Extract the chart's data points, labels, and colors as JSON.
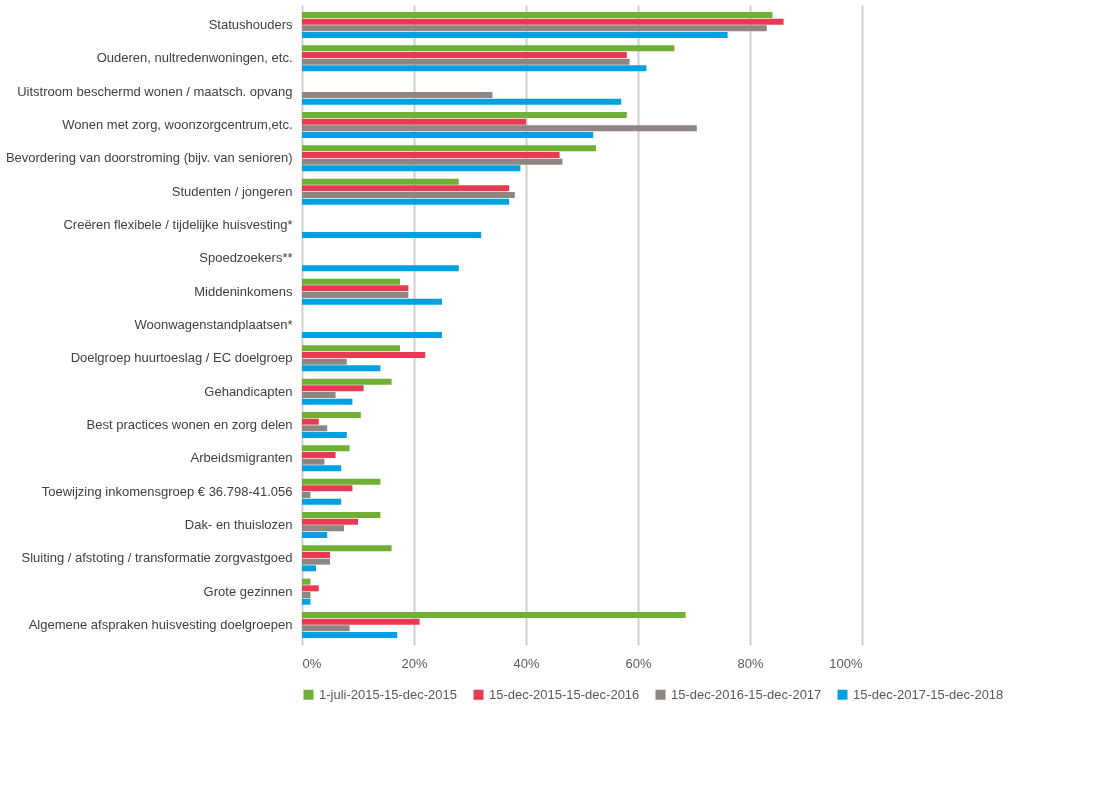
{
  "chart_data": {
    "type": "bar",
    "orientation": "horizontal",
    "categories": [
      "Statushouders",
      "Ouderen, nultredenwoningen, etc.",
      "Uitstroom beschermd wonen / maatsch. opvang",
      "Wonen met zorg, woonzorgcentrum,etc.",
      "Bevordering van doorstroming (bijv. van senioren)",
      "Studenten / jongeren",
      "Creëren flexibele / tijdelijke huisvesting*",
      "Spoedzoekers**",
      "Middeninkomens",
      "Woonwagenstandplaatsen*",
      "Doelgroep huurtoeslag / EC doelgroep",
      "Gehandicapten",
      "Best practices wonen en zorg delen",
      "Arbeidsmigranten",
      "Toewijzing inkomensgroep € 36.798-41.056",
      "Dak- en thuislozen",
      "Sluiting / afstoting / transformatie zorgvastgoed",
      "Grote gezinnen",
      "Algemene afspraken huisvesting doelgroepen"
    ],
    "series": [
      {
        "name": "1-juli-2015-15-dec-2015",
        "color": "#70b034",
        "values": [
          84,
          66.5,
          null,
          58,
          52.5,
          28,
          null,
          null,
          17.5,
          null,
          17.5,
          16,
          10.5,
          8.5,
          14,
          14,
          16,
          1.5,
          68.5
        ]
      },
      {
        "name": "15-dec-2015-15-dec-2016",
        "color": "#e83a52",
        "values": [
          86,
          58,
          null,
          40,
          46,
          37,
          null,
          null,
          19,
          null,
          22,
          11,
          3,
          6,
          9,
          10,
          5,
          3,
          21
        ]
      },
      {
        "name": "15-dec-2016-15-dec-2017",
        "color": "#8d8682",
        "values": [
          83,
          58.5,
          34,
          70.5,
          46.5,
          38,
          null,
          null,
          19,
          null,
          8,
          6,
          4.5,
          4,
          1.5,
          7.5,
          5,
          1.5,
          8.5
        ]
      },
      {
        "name": "15-dec-2017-15-dec-2018",
        "color": "#00a0e3",
        "values": [
          76,
          61.5,
          57,
          52,
          39,
          37,
          32,
          28,
          25,
          25,
          14,
          9,
          8,
          7,
          7,
          4.5,
          2.5,
          1.5,
          17
        ]
      }
    ],
    "xlim": [
      0,
      100
    ],
    "xticks": [
      {
        "value": 0,
        "label": "0%"
      },
      {
        "value": 20,
        "label": "20%"
      },
      {
        "value": 40,
        "label": "40%"
      },
      {
        "value": 60,
        "label": "60%"
      },
      {
        "value": 80,
        "label": "80%"
      },
      {
        "value": 100,
        "label": "100%"
      }
    ],
    "grid": "x",
    "legend": "bottom"
  }
}
